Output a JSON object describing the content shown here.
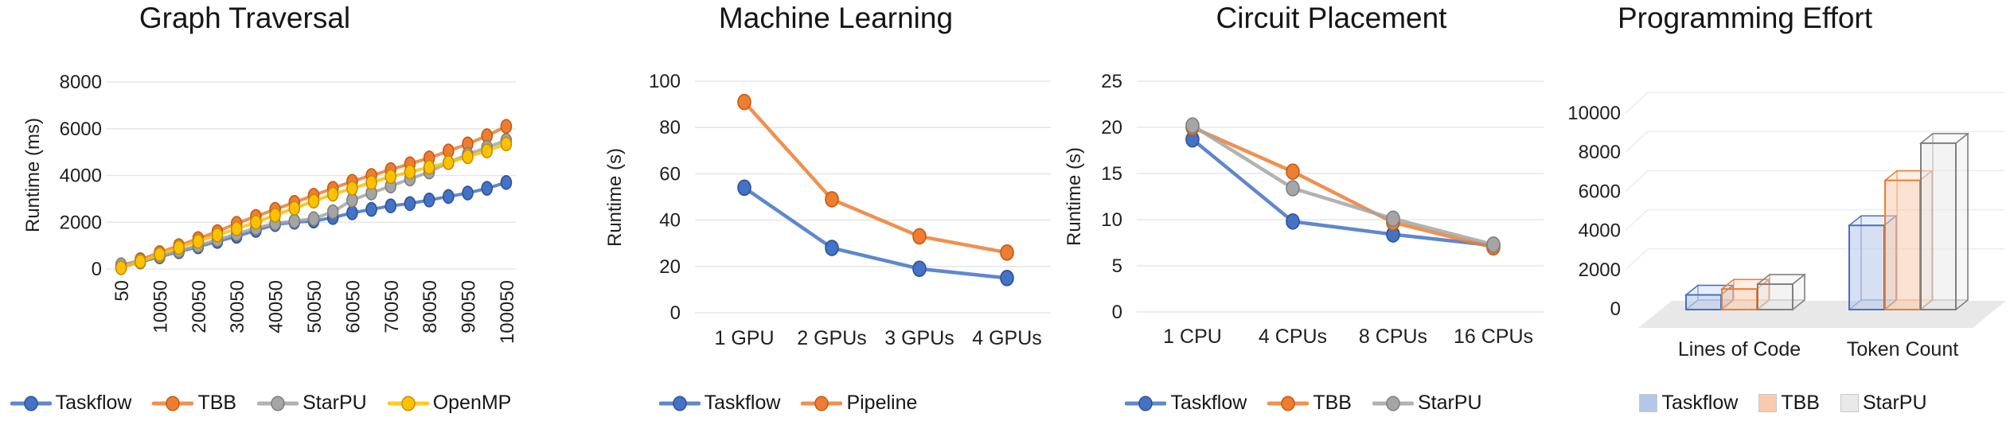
{
  "figure": {
    "background": "#ffffff",
    "gridline_color": "#E7E7E7"
  },
  "chart_data": [
    {
      "id": "graph-traversal",
      "type": "line",
      "title": "Graph Traversal",
      "ylabel": "Runtime (ms)",
      "ylim": [
        0,
        8000
      ],
      "y_ticks": [
        0,
        2000,
        4000,
        6000,
        8000
      ],
      "x": [
        50,
        5050,
        10050,
        15050,
        20050,
        25050,
        30050,
        35050,
        40050,
        45050,
        50050,
        55050,
        60050,
        65050,
        70050,
        75050,
        80050,
        85050,
        90050,
        95050,
        100050
      ],
      "x_tick_labels": [
        "50",
        "10050",
        "20050",
        "30050",
        "40050",
        "50050",
        "60050",
        "70050",
        "80050",
        "90050",
        "100050"
      ],
      "x_label_every": 2,
      "rotate_x_labels": true,
      "legend_position": "bottom",
      "grid": true,
      "series": [
        {
          "name": "Taskflow",
          "color": "#4472C4",
          "edge": "#2E5396",
          "values": [
            60,
            300,
            520,
            740,
            950,
            1180,
            1400,
            1650,
            1900,
            2000,
            2050,
            2200,
            2400,
            2550,
            2700,
            2800,
            2950,
            3100,
            3250,
            3450,
            3700
          ]
        },
        {
          "name": "TBB",
          "color": "#ED7D31",
          "edge": "#C55A11",
          "values": [
            100,
            400,
            700,
            1000,
            1300,
            1600,
            1950,
            2250,
            2550,
            2850,
            3150,
            3450,
            3750,
            4000,
            4250,
            4500,
            4750,
            5050,
            5350,
            5700,
            6100
          ]
        },
        {
          "name": "StarPU",
          "color": "#A5A5A5",
          "edge": "#7F7F7F",
          "values": [
            180,
            350,
            550,
            780,
            1000,
            1250,
            1500,
            1750,
            1950,
            2050,
            2150,
            2450,
            2950,
            3250,
            3550,
            3850,
            4150,
            4550,
            4900,
            5200,
            5500
          ]
        },
        {
          "name": "OpenMP",
          "color": "#FFC000",
          "edge": "#BF9000",
          "values": [
            50,
            320,
            620,
            920,
            1180,
            1450,
            1720,
            2000,
            2300,
            2600,
            2900,
            3200,
            3450,
            3700,
            3950,
            4150,
            4350,
            4550,
            4800,
            5050,
            5350
          ]
        }
      ]
    },
    {
      "id": "machine-learning",
      "type": "line",
      "title": "Machine Learning",
      "ylabel": "Runtime (s)",
      "ylim": [
        0,
        100
      ],
      "y_ticks": [
        0,
        20,
        40,
        60,
        80,
        100
      ],
      "categories": [
        "1 GPU",
        "2 GPUs",
        "3 GPUs",
        "4 GPUs"
      ],
      "legend_position": "bottom",
      "grid": true,
      "series": [
        {
          "name": "Taskflow",
          "color": "#4472C4",
          "edge": "#2E5396",
          "values": [
            54,
            28,
            19,
            15
          ]
        },
        {
          "name": "Pipeline",
          "color": "#ED7D31",
          "edge": "#C55A11",
          "values": [
            91,
            49,
            33,
            26
          ]
        }
      ]
    },
    {
      "id": "circuit-placement",
      "type": "line",
      "title": "Circuit Placement",
      "ylabel": "Runtime (s)",
      "ylim": [
        0,
        25
      ],
      "y_ticks": [
        0,
        5,
        10,
        15,
        20,
        25
      ],
      "categories": [
        "1 CPU",
        "4 CPUs",
        "8 CPUs",
        "16 CPUs"
      ],
      "legend_position": "bottom",
      "grid": true,
      "series": [
        {
          "name": "Taskflow",
          "color": "#4472C4",
          "edge": "#2E5396",
          "values": [
            18.7,
            9.8,
            8.4,
            7.2
          ]
        },
        {
          "name": "TBB",
          "color": "#ED7D31",
          "edge": "#C55A11",
          "values": [
            20.0,
            15.2,
            9.7,
            7.0
          ]
        },
        {
          "name": "StarPU",
          "color": "#A5A5A5",
          "edge": "#7F7F7F",
          "values": [
            20.2,
            13.4,
            10.1,
            7.3
          ]
        }
      ]
    },
    {
      "id": "programming-effort",
      "type": "bar3d",
      "title": "Programming Effort",
      "ylabel": "",
      "ylim": [
        0,
        10000
      ],
      "y_ticks": [
        0,
        2000,
        4000,
        6000,
        8000,
        10000
      ],
      "categories": [
        "Lines of Code",
        "Token Count"
      ],
      "legend_position": "bottom",
      "grid": true,
      "series": [
        {
          "name": "Taskflow",
          "color": "#B4C7E7",
          "edge": "#4472C4",
          "values": [
            750,
            4300
          ]
        },
        {
          "name": "TBB",
          "color": "#F8CBAD",
          "edge": "#ED7D31",
          "values": [
            1050,
            6600
          ]
        },
        {
          "name": "StarPU",
          "color": "#E9E9E9",
          "edge": "#808080",
          "values": [
            1300,
            8500
          ]
        }
      ]
    }
  ]
}
